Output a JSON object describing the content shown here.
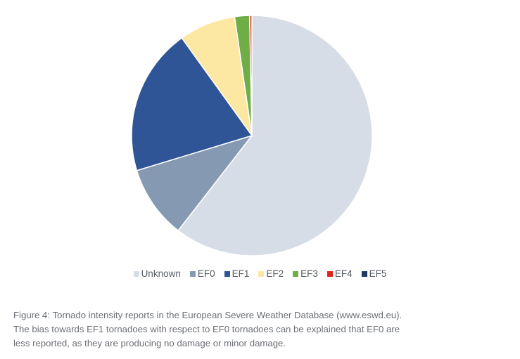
{
  "chart_data": {
    "type": "pie",
    "title": "",
    "categories": [
      "Unknown",
      "EF0",
      "EF1",
      "EF2",
      "EF3",
      "EF4",
      "EF5"
    ],
    "values": [
      60.5,
      9.8,
      19.8,
      7.6,
      2.0,
      0.3,
      0.0
    ],
    "unit": "%",
    "start_angle_deg": 0,
    "direction": "clockwise",
    "colors": [
      "#d6dde6",
      "#8699b3",
      "#2f5597",
      "#fce8a2",
      "#6fad47",
      "#e0231b",
      "#1f3864"
    ],
    "legend_position": "bottom",
    "legend": [
      {
        "label": "Unknown",
        "color": "#d6dde6"
      },
      {
        "label": "EF0",
        "color": "#8699b3"
      },
      {
        "label": "EF1",
        "color": "#2f5597"
      },
      {
        "label": "EF2",
        "color": "#fce8a2"
      },
      {
        "label": "EF3",
        "color": "#6fad47"
      },
      {
        "label": "EF4",
        "color": "#e0231b"
      },
      {
        "label": "EF5",
        "color": "#1f3864"
      }
    ]
  },
  "caption": {
    "lines": [
      "Figure 4: Tornado intensity reports in the European Severe Weather Database (www.eswd.eu).",
      "The bias towards EF1 tornadoes with respect to EF0 tornadoes can be explained that EF0 are",
      "less reported, as they are producing no damage or minor damage."
    ]
  }
}
